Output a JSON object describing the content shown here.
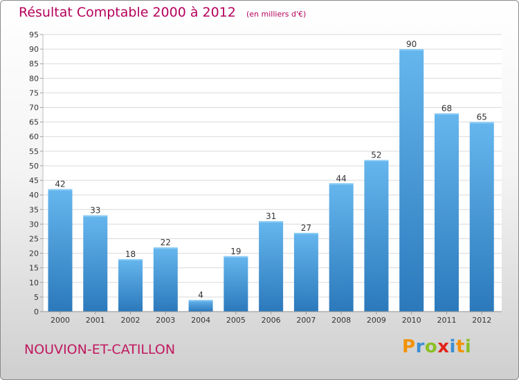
{
  "chart_data": {
    "type": "bar",
    "title": "Résultat Comptable 2000 à 2012",
    "subtitle": "(en milliers d'€)",
    "categories": [
      "2000",
      "2001",
      "2002",
      "2003",
      "2004",
      "2005",
      "2006",
      "2007",
      "2008",
      "2009",
      "2010",
      "2011",
      "2012"
    ],
    "values": [
      42,
      33,
      18,
      22,
      4,
      19,
      31,
      27,
      44,
      52,
      90,
      68,
      65
    ],
    "ylim": [
      0,
      95
    ],
    "yticks": [
      0,
      5,
      10,
      15,
      20,
      25,
      30,
      35,
      40,
      45,
      50,
      55,
      60,
      65,
      70,
      75,
      80,
      85,
      90,
      95
    ],
    "grid": true,
    "xlabel": "",
    "ylabel": ""
  },
  "commune": "NOUVION-ET-CATILLON",
  "brand": {
    "letters": [
      "P",
      "r",
      "o",
      "x",
      "i",
      "t",
      "i"
    ],
    "colors": [
      "#f39200",
      "#3a8fd6",
      "#8cbf26",
      "#e2231a",
      "#3a8fd6",
      "#f39200",
      "#8cbf26"
    ]
  },
  "colors": {
    "bar_light": "#62b2ec",
    "bar_dark": "#2f7fc0",
    "title": "#b5005b",
    "grid": "#d9d9d9"
  }
}
